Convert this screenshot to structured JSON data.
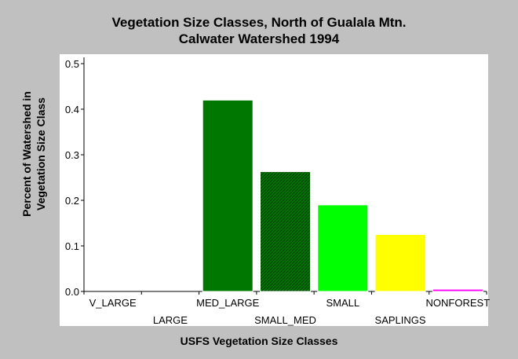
{
  "chart_data": {
    "type": "bar",
    "title": "Vegetation Size Classes, North of Gualala Mtn.",
    "subtitle": "Calwater Watershed 1994",
    "xlabel": "USFS Vegetation Size Classes",
    "ylabel_line1": "Percent of Watershed in",
    "ylabel_line2": "Vegetation Size Class",
    "categories": [
      "V_LARGE",
      "LARGE",
      "MED_LARGE",
      "SMALL_MED",
      "SMALL",
      "SAPLINGS",
      "NONFOREST"
    ],
    "values": [
      0,
      0,
      0.42,
      0.263,
      0.19,
      0.125,
      0.005
    ],
    "bar_colors": [
      "#006400",
      "#006400",
      "#007700",
      "#007700",
      "#00ff00",
      "#ffff00",
      "#ff00ff"
    ],
    "bar_patterns": [
      "solid",
      "solid",
      "solid",
      "hatched",
      "solid",
      "solid",
      "solid"
    ],
    "ylim": [
      0,
      0.5
    ],
    "yticks": [
      "0.0",
      "0.1",
      "0.2",
      "0.3",
      "0.4",
      "0.5"
    ],
    "grid": false,
    "legend": "none"
  }
}
